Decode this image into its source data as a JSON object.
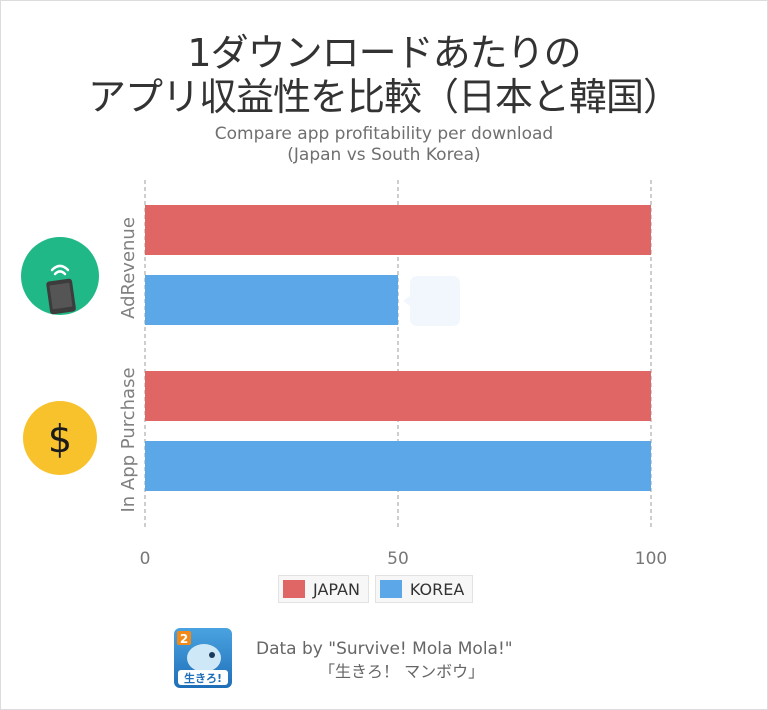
{
  "title_line1": "1ダウンロードあたりの",
  "title_line2": "アプリ収益性を比較（日本と韓国）",
  "subtitle_line1": "Compare app profitability per download",
  "subtitle_line2": "(Japan vs South Korea)",
  "colors": {
    "japan": "#e06666",
    "korea": "#5ba7e8",
    "gridline": "#9e9e9e",
    "adrevenue_icon": "#1fb886",
    "iap_icon": "#f7c22c"
  },
  "icons": {
    "adrevenue": "smartphone-icon",
    "iap": "dollar-icon",
    "app": "mola-mola-app-icon"
  },
  "dollar_glyph": "$",
  "chart_data": {
    "type": "bar",
    "orientation": "horizontal",
    "categories": [
      "AdRevenue",
      "In App Purchase"
    ],
    "series": [
      {
        "name": "JAPAN",
        "values": [
          100,
          100
        ]
      },
      {
        "name": "KOREA",
        "values": [
          50,
          100
        ]
      }
    ],
    "xlim": [
      0,
      100
    ],
    "xticks": [
      0,
      50,
      100
    ],
    "grid": true,
    "legend_position": "bottom"
  },
  "credit_line1": "Data by \"Survive! Mola Mola!\"",
  "credit_line2": "「生きろ！ マンボウ」",
  "app_icon_badge": "2",
  "app_icon_text": "生きろ!"
}
